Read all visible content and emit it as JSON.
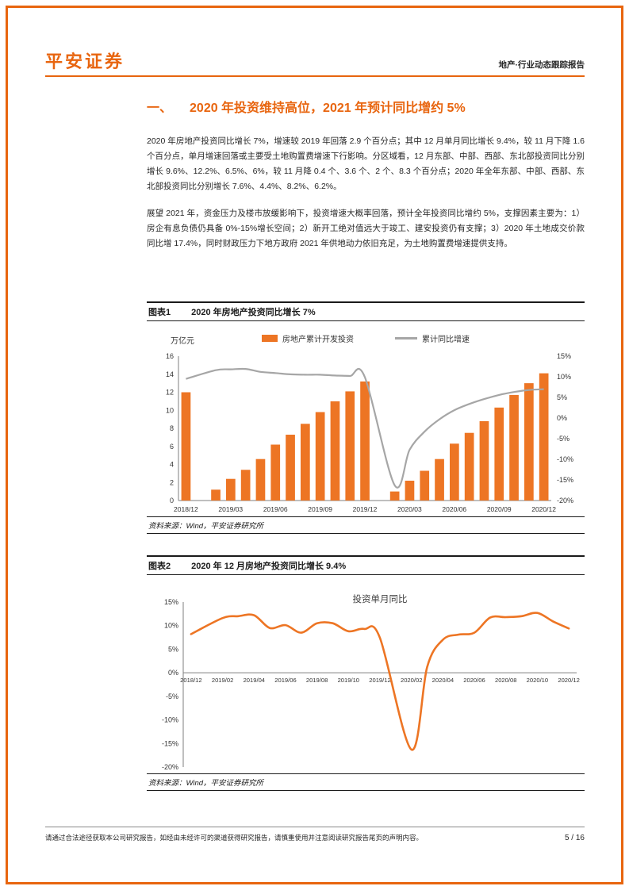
{
  "theme": {
    "accent": "#E8650F",
    "bar_color": "#ED7524",
    "gray_color": "#A6A6A6",
    "text_color": "#262626"
  },
  "header": {
    "logo": "平安证券",
    "report_type": "地产·行业动态跟踪报告"
  },
  "section": {
    "number": "一、",
    "title": "2020 年投资维持高位，2021 年预计同比增约 5%"
  },
  "paragraphs": [
    "2020 年房地产投资同比增长 7%，增速较 2019 年回落 2.9 个百分点；其中 12 月单月同比增长 9.4%，较 11 月下降 1.6 个百分点，单月增速回落或主要受土地购置费增速下行影响。分区域看，12 月东部、中部、西部、东北部投资同比分别增长 9.6%、12.2%、6.5%、6%，较 11 月降 0.4 个、3.6 个、2 个、8.3 个百分点；2020 年全年东部、中部、西部、东北部投资同比分别增长 7.6%、4.4%、8.2%、6.2%。",
    "展望 2021 年，资金压力及楼市放缓影响下，投资增速大概率回落，预计全年投资同比增约 5%，支撑因素主要为：1）房企有息负债仍具备 0%-15%增长空间；2）新开工绝对值远大于竣工、建安投资仍有支撑；3）2020 年土地成交价款同比增 17.4%，同时财政压力下地方政府 2021 年供地动力依旧充足，为土地购置费增速提供支持。"
  ],
  "figure1": {
    "label": "图表1",
    "title": "2020 年房地产投资同比增长 7%",
    "legend": [
      "房地产累计开发投资",
      "累计同比增速"
    ],
    "source": "资料来源：Wind，平安证券研究所"
  },
  "figure2": {
    "label": "图表2",
    "title": "2020 年 12 月房地产投资同比增长 9.4%",
    "source": "资料来源：Wind，平安证券研究所"
  },
  "chart_data": [
    {
      "type": "bar",
      "subtype": "combo_bar_line_dual_axis",
      "categories": [
        "2018/12",
        "2019/01",
        "2019/02",
        "2019/03",
        "2019/04",
        "2019/05",
        "2019/06",
        "2019/07",
        "2019/08",
        "2019/09",
        "2019/10",
        "2019/11",
        "2019/12",
        "2020/01",
        "2020/02",
        "2020/03",
        "2020/04",
        "2020/05",
        "2020/06",
        "2020/07",
        "2020/08",
        "2020/09",
        "2020/10",
        "2020/11",
        "2020/12"
      ],
      "series": [
        {
          "name": "房地产累计开发投资",
          "type": "bar",
          "axis": "left",
          "values": [
            12.0,
            null,
            1.2,
            2.4,
            3.4,
            4.6,
            6.2,
            7.3,
            8.5,
            9.8,
            11.0,
            12.1,
            13.2,
            null,
            1.0,
            2.2,
            3.3,
            4.6,
            6.3,
            7.5,
            8.8,
            10.3,
            11.7,
            13.0,
            14.1
          ]
        },
        {
          "name": "累计同比增速",
          "type": "line",
          "axis": "right",
          "values": [
            9.5,
            null,
            11.6,
            11.8,
            11.9,
            11.2,
            10.9,
            10.6,
            10.5,
            10.5,
            10.3,
            10.2,
            9.9,
            null,
            -16.3,
            -7.7,
            -3.3,
            -0.3,
            1.9,
            3.4,
            4.6,
            5.6,
            6.3,
            6.8,
            7.0
          ]
        }
      ],
      "left_axis": {
        "label": "万亿元",
        "min": 0,
        "max": 16,
        "ticks": [
          16,
          14,
          12,
          10,
          8,
          6,
          4,
          2,
          0
        ],
        "suffix": ""
      },
      "right_axis": {
        "min": -20,
        "max": 15,
        "ticks": [
          15,
          10,
          5,
          0,
          -5,
          -10,
          -15,
          -20
        ],
        "suffix": "%"
      },
      "x_tick_labels": [
        "2018/12",
        "2019/03",
        "2019/06",
        "2019/09",
        "2019/12",
        "2020/03",
        "2020/06",
        "2020/09",
        "2020/12"
      ],
      "grid": false,
      "legend_position": "top"
    },
    {
      "type": "line",
      "title": "投资单月同比",
      "categories": [
        "2018/12",
        "2019/01",
        "2019/02",
        "2019/03",
        "2019/04",
        "2019/05",
        "2019/06",
        "2019/07",
        "2019/08",
        "2019/09",
        "2019/10",
        "2019/11",
        "2019/12",
        "2020/01",
        "2020/02",
        "2020/03",
        "2020/04",
        "2020/05",
        "2020/06",
        "2020/07",
        "2020/08",
        "2020/09",
        "2020/10",
        "2020/11",
        "2020/12"
      ],
      "values": [
        8.2,
        null,
        11.6,
        12.0,
        12.2,
        9.5,
        10.1,
        8.5,
        10.5,
        10.5,
        8.8,
        9.3,
        7.4,
        null,
        -16.3,
        1.2,
        7.0,
        8.1,
        8.5,
        11.7,
        11.8,
        12.0,
        12.7,
        10.9,
        9.4
      ],
      "y_axis": {
        "min": -20,
        "max": 15,
        "ticks": [
          15,
          10,
          5,
          0,
          -5,
          -10,
          -15,
          -20
        ],
        "suffix": "%"
      },
      "x_tick_labels": [
        "2018/12",
        "2019/02",
        "2019/04",
        "2019/06",
        "2019/08",
        "2019/10",
        "2019/12",
        "2020/02",
        "2020/04",
        "2020/06",
        "2020/08",
        "2020/10",
        "2020/12"
      ],
      "grid": false
    }
  ],
  "footer": {
    "disclaimer": "请通过合法途径获取本公司研究报告，如经由未经许可的渠道获得研究报告，请慎重使用并注意阅读研究报告尾页的声明内容。",
    "page": "5 / 16"
  }
}
